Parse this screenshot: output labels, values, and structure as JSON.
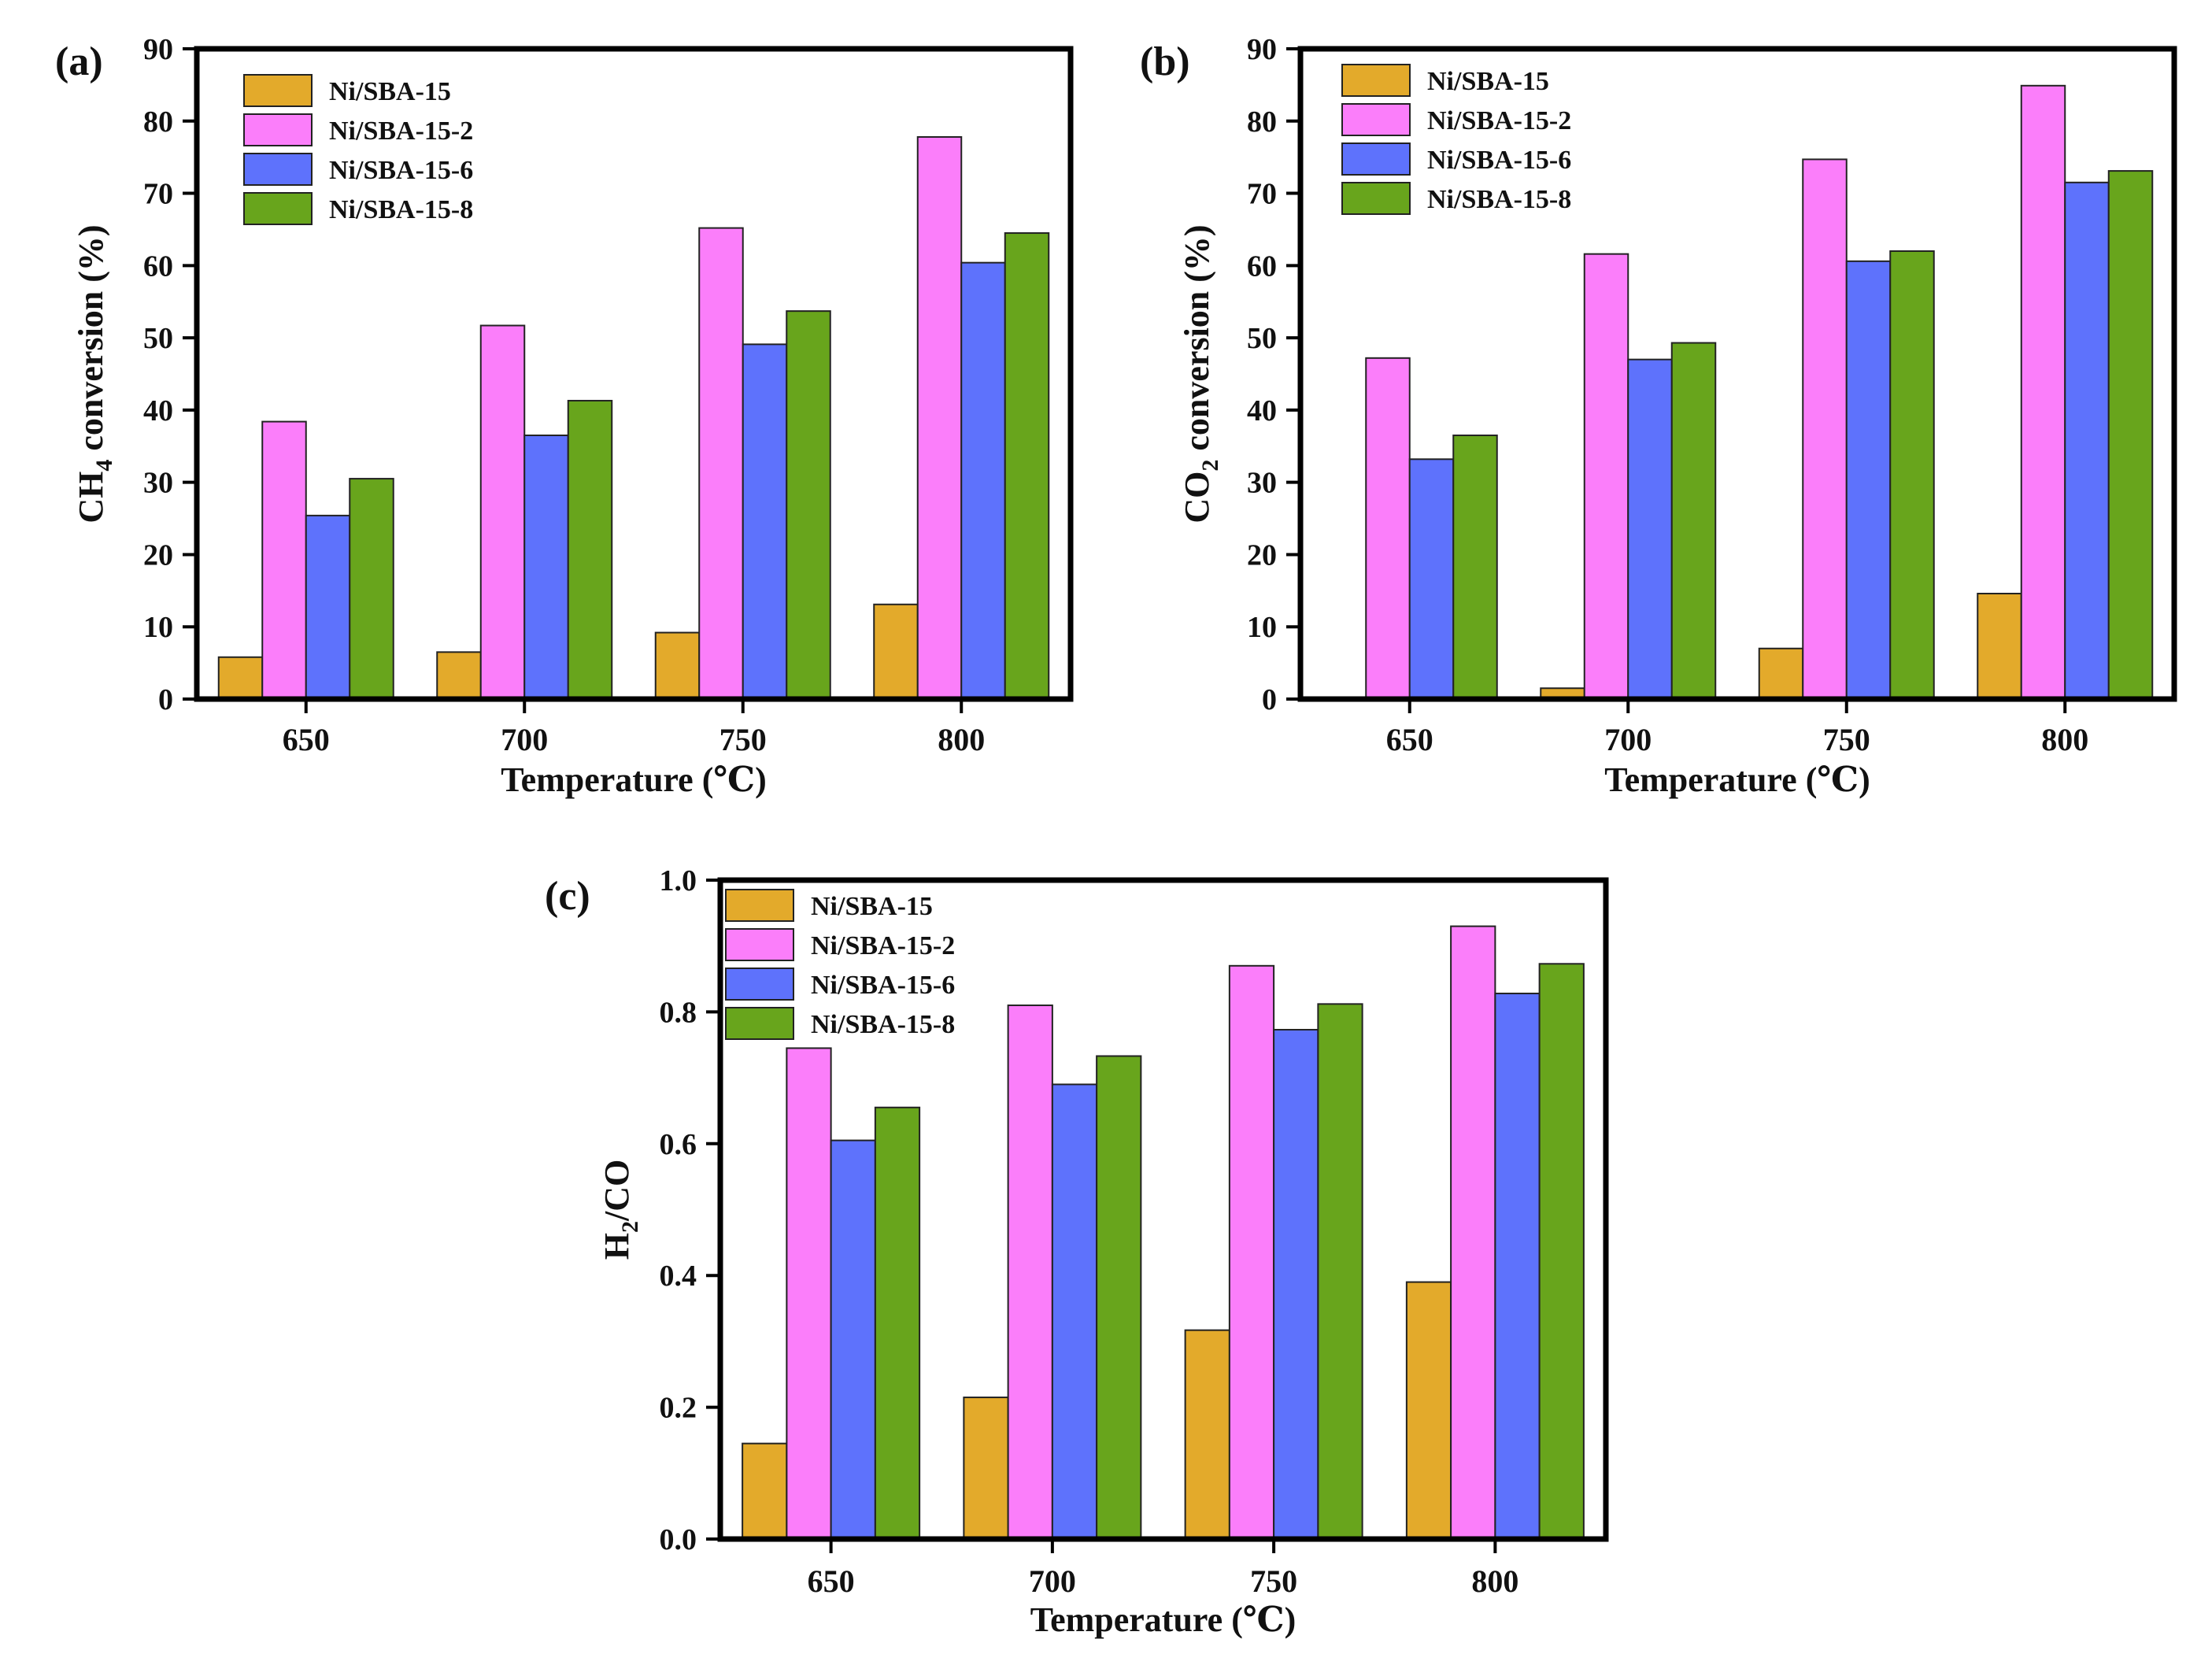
{
  "figure": {
    "series_names": [
      "Ni/SBA-15",
      "Ni/SBA-15-2",
      "Ni/SBA-15-6",
      "Ni/SBA-15-8"
    ],
    "series_colors": [
      "#E3AA2B",
      "#FB7EFA",
      "#5E72FC",
      "#68A51C"
    ]
  },
  "chart_data": [
    {
      "type": "bar",
      "panel_label": "(a)",
      "title": "",
      "xlabel": "Temperature (℃)",
      "ylabel_main": "CH",
      "ylabel_sub": "4",
      "ylabel_rest": " conversion (%)",
      "categories": [
        "650",
        "700",
        "750",
        "800"
      ],
      "ylim": [
        0,
        90
      ],
      "yticks": [
        "0",
        "10",
        "20",
        "30",
        "40",
        "50",
        "60",
        "70",
        "80",
        "90"
      ],
      "series": [
        {
          "name": "Ni/SBA-15",
          "values": [
            5.8,
            6.5,
            9.2,
            13.1
          ]
        },
        {
          "name": "Ni/SBA-15-2",
          "values": [
            38.4,
            51.7,
            65.2,
            77.8
          ]
        },
        {
          "name": "Ni/SBA-15-6",
          "values": [
            25.4,
            36.5,
            49.1,
            60.4
          ]
        },
        {
          "name": "Ni/SBA-15-8",
          "values": [
            30.5,
            41.3,
            53.7,
            64.5
          ]
        }
      ],
      "legend": "top-left"
    },
    {
      "type": "bar",
      "panel_label": "(b)",
      "title": "",
      "xlabel": "Temperature (℃)",
      "ylabel_main": "CO",
      "ylabel_sub": "2",
      "ylabel_rest": " conversion (%)",
      "categories": [
        "650",
        "700",
        "750",
        "800"
      ],
      "ylim": [
        0,
        90
      ],
      "yticks": [
        "0",
        "10",
        "20",
        "30",
        "40",
        "50",
        "60",
        "70",
        "80",
        "90"
      ],
      "series": [
        {
          "name": "Ni/SBA-15",
          "values": [
            0,
            1.5,
            7.0,
            14.6
          ]
        },
        {
          "name": "Ni/SBA-15-2",
          "values": [
            47.2,
            61.6,
            74.7,
            84.9
          ]
        },
        {
          "name": "Ni/SBA-15-6",
          "values": [
            33.2,
            47.0,
            60.6,
            71.5
          ]
        },
        {
          "name": "Ni/SBA-15-8",
          "values": [
            36.5,
            49.3,
            62.0,
            73.1
          ]
        }
      ],
      "legend": "top-left"
    },
    {
      "type": "bar",
      "panel_label": "(c)",
      "title": "",
      "xlabel": "Temperature (℃)",
      "ylabel_main": "H",
      "ylabel_sub": "2",
      "ylabel_rest": "/CO",
      "categories": [
        "650",
        "700",
        "750",
        "800"
      ],
      "ylim": [
        0,
        1.0
      ],
      "yticks": [
        "0.0",
        "0.2",
        "0.4",
        "0.6",
        "0.8",
        "1.0"
      ],
      "series": [
        {
          "name": "Ni/SBA-15",
          "values": [
            0.145,
            0.215,
            0.317,
            0.39
          ]
        },
        {
          "name": "Ni/SBA-15-2",
          "values": [
            0.745,
            0.81,
            0.87,
            0.93
          ]
        },
        {
          "name": "Ni/SBA-15-6",
          "values": [
            0.605,
            0.69,
            0.773,
            0.828
          ]
        },
        {
          "name": "Ni/SBA-15-8",
          "values": [
            0.655,
            0.733,
            0.812,
            0.873
          ]
        }
      ],
      "legend": "top-left"
    }
  ]
}
